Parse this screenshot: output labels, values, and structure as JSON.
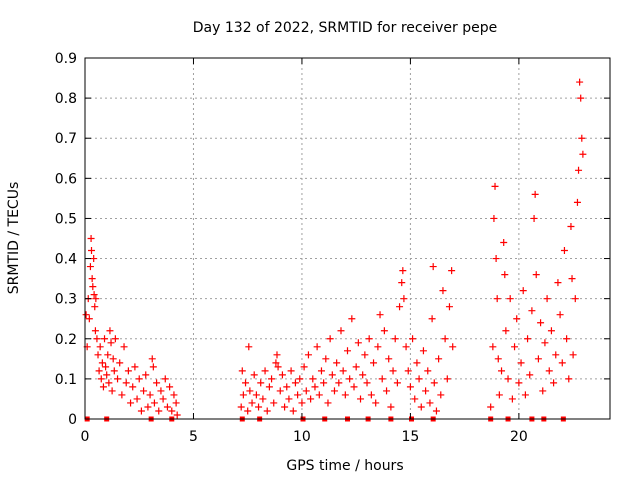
{
  "chart_data": {
    "type": "scatter",
    "title": "Day 132 of 2022, SRMTID for receiver pepe",
    "xlabel": "GPS time / hours",
    "ylabel": "SRMTID / TECUs",
    "xlim": [
      0,
      24.2
    ],
    "ylim": [
      0,
      0.9
    ],
    "xticks": [
      0,
      5,
      10,
      15,
      20
    ],
    "yticks": [
      0,
      0.1,
      0.2,
      0.3,
      0.4,
      0.5,
      0.6,
      0.7,
      0.8,
      0.9
    ],
    "grid": true,
    "marker": "plus",
    "color": "#ff0000",
    "series": [
      {
        "name": "SRMTID",
        "points": [
          [
            0.05,
            0.26
          ],
          [
            0.1,
            0.18
          ],
          [
            0.15,
            0.3
          ],
          [
            0.2,
            0.25
          ],
          [
            0.25,
            0.38
          ],
          [
            0.28,
            0.45
          ],
          [
            0.3,
            0.42
          ],
          [
            0.33,
            0.35
          ],
          [
            0.36,
            0.33
          ],
          [
            0.4,
            0.4
          ],
          [
            0.42,
            0.31
          ],
          [
            0.45,
            0.28
          ],
          [
            0.48,
            0.22
          ],
          [
            0.5,
            0.3
          ],
          [
            0.55,
            0.2
          ],
          [
            0.6,
            0.16
          ],
          [
            0.65,
            0.12
          ],
          [
            0.7,
            0.18
          ],
          [
            0.75,
            0.1
          ],
          [
            0.8,
            0.14
          ],
          [
            0.85,
            0.08
          ],
          [
            0.9,
            0.2
          ],
          [
            0.95,
            0.13
          ],
          [
            1.0,
            0.11
          ],
          [
            1.05,
            0.16
          ],
          [
            1.1,
            0.09
          ],
          [
            1.15,
            0.22
          ],
          [
            1.2,
            0.19
          ],
          [
            1.25,
            0.07
          ],
          [
            1.3,
            0.15
          ],
          [
            1.35,
            0.12
          ],
          [
            1.4,
            0.2
          ],
          [
            1.5,
            0.1
          ],
          [
            1.6,
            0.14
          ],
          [
            1.7,
            0.06
          ],
          [
            1.8,
            0.18
          ],
          [
            1.9,
            0.09
          ],
          [
            2.0,
            0.12
          ],
          [
            2.1,
            0.04
          ],
          [
            2.2,
            0.08
          ],
          [
            2.3,
            0.13
          ],
          [
            2.4,
            0.05
          ],
          [
            2.5,
            0.1
          ],
          [
            2.6,
            0.02
          ],
          [
            2.7,
            0.07
          ],
          [
            2.8,
            0.11
          ],
          [
            2.9,
            0.03
          ],
          [
            3.0,
            0.06
          ],
          [
            3.1,
            0.15
          ],
          [
            3.15,
            0.13
          ],
          [
            3.2,
            0.04
          ],
          [
            3.3,
            0.09
          ],
          [
            3.4,
            0.02
          ],
          [
            3.5,
            0.07
          ],
          [
            3.6,
            0.05
          ],
          [
            3.7,
            0.1
          ],
          [
            3.8,
            0.03
          ],
          [
            3.9,
            0.08
          ],
          [
            4.0,
            0.02
          ],
          [
            4.1,
            0.06
          ],
          [
            4.2,
            0.04
          ],
          [
            4.25,
            0.01
          ],
          [
            7.2,
            0.03
          ],
          [
            7.25,
            0.12
          ],
          [
            7.3,
            0.06
          ],
          [
            7.4,
            0.09
          ],
          [
            7.5,
            0.02
          ],
          [
            7.55,
            0.18
          ],
          [
            7.6,
            0.07
          ],
          [
            7.7,
            0.04
          ],
          [
            7.8,
            0.11
          ],
          [
            7.9,
            0.06
          ],
          [
            8.0,
            0.03
          ],
          [
            8.1,
            0.09
          ],
          [
            8.2,
            0.05
          ],
          [
            8.3,
            0.12
          ],
          [
            8.4,
            0.02
          ],
          [
            8.5,
            0.08
          ],
          [
            8.6,
            0.1
          ],
          [
            8.7,
            0.04
          ],
          [
            8.8,
            0.14
          ],
          [
            8.85,
            0.16
          ],
          [
            8.9,
            0.13
          ],
          [
            9.0,
            0.07
          ],
          [
            9.1,
            0.11
          ],
          [
            9.2,
            0.03
          ],
          [
            9.3,
            0.08
          ],
          [
            9.4,
            0.05
          ],
          [
            9.5,
            0.12
          ],
          [
            9.6,
            0.02
          ],
          [
            9.7,
            0.09
          ],
          [
            9.8,
            0.06
          ],
          [
            9.9,
            0.1
          ],
          [
            10.0,
            0.04
          ],
          [
            10.1,
            0.13
          ],
          [
            10.2,
            0.07
          ],
          [
            10.3,
            0.16
          ],
          [
            10.4,
            0.05
          ],
          [
            10.5,
            0.1
          ],
          [
            10.6,
            0.08
          ],
          [
            10.7,
            0.18
          ],
          [
            10.8,
            0.06
          ],
          [
            10.9,
            0.12
          ],
          [
            11.0,
            0.09
          ],
          [
            11.1,
            0.15
          ],
          [
            11.2,
            0.04
          ],
          [
            11.3,
            0.2
          ],
          [
            11.4,
            0.11
          ],
          [
            11.5,
            0.07
          ],
          [
            11.6,
            0.14
          ],
          [
            11.7,
            0.09
          ],
          [
            11.8,
            0.22
          ],
          [
            11.9,
            0.12
          ],
          [
            12.0,
            0.06
          ],
          [
            12.1,
            0.17
          ],
          [
            12.2,
            0.1
          ],
          [
            12.3,
            0.25
          ],
          [
            12.4,
            0.08
          ],
          [
            12.5,
            0.13
          ],
          [
            12.6,
            0.19
          ],
          [
            12.7,
            0.05
          ],
          [
            12.8,
            0.11
          ],
          [
            12.9,
            0.16
          ],
          [
            13.0,
            0.09
          ],
          [
            13.1,
            0.2
          ],
          [
            13.2,
            0.06
          ],
          [
            13.3,
            0.14
          ],
          [
            13.4,
            0.04
          ],
          [
            13.5,
            0.18
          ],
          [
            13.6,
            0.26
          ],
          [
            13.7,
            0.1
          ],
          [
            13.8,
            0.22
          ],
          [
            13.9,
            0.07
          ],
          [
            14.0,
            0.15
          ],
          [
            14.1,
            0.03
          ],
          [
            14.2,
            0.12
          ],
          [
            14.3,
            0.2
          ],
          [
            14.4,
            0.09
          ],
          [
            14.5,
            0.28
          ],
          [
            14.6,
            0.34
          ],
          [
            14.65,
            0.37
          ],
          [
            14.7,
            0.3
          ],
          [
            14.8,
            0.18
          ],
          [
            14.9,
            0.12
          ],
          [
            15.0,
            0.08
          ],
          [
            15.1,
            0.2
          ],
          [
            15.2,
            0.05
          ],
          [
            15.3,
            0.14
          ],
          [
            15.4,
            0.1
          ],
          [
            15.5,
            0.03
          ],
          [
            15.6,
            0.17
          ],
          [
            15.7,
            0.07
          ],
          [
            15.8,
            0.12
          ],
          [
            15.9,
            0.04
          ],
          [
            16.0,
            0.25
          ],
          [
            16.05,
            0.38
          ],
          [
            16.1,
            0.09
          ],
          [
            16.2,
            0.02
          ],
          [
            16.3,
            0.15
          ],
          [
            16.4,
            0.06
          ],
          [
            16.5,
            0.32
          ],
          [
            16.6,
            0.2
          ],
          [
            16.7,
            0.1
          ],
          [
            16.8,
            0.28
          ],
          [
            16.9,
            0.37
          ],
          [
            16.95,
            0.18
          ],
          [
            18.7,
            0.03
          ],
          [
            18.8,
            0.18
          ],
          [
            18.85,
            0.5
          ],
          [
            18.9,
            0.58
          ],
          [
            18.95,
            0.4
          ],
          [
            19.0,
            0.3
          ],
          [
            19.05,
            0.15
          ],
          [
            19.1,
            0.06
          ],
          [
            19.2,
            0.12
          ],
          [
            19.3,
            0.44
          ],
          [
            19.35,
            0.36
          ],
          [
            19.4,
            0.22
          ],
          [
            19.5,
            0.1
          ],
          [
            19.6,
            0.3
          ],
          [
            19.7,
            0.05
          ],
          [
            19.8,
            0.18
          ],
          [
            19.9,
            0.25
          ],
          [
            20.0,
            0.09
          ],
          [
            20.1,
            0.14
          ],
          [
            20.2,
            0.32
          ],
          [
            20.3,
            0.06
          ],
          [
            20.4,
            0.2
          ],
          [
            20.5,
            0.11
          ],
          [
            20.6,
            0.27
          ],
          [
            20.7,
            0.5
          ],
          [
            20.75,
            0.56
          ],
          [
            20.8,
            0.36
          ],
          [
            20.9,
            0.15
          ],
          [
            21.0,
            0.24
          ],
          [
            21.1,
            0.07
          ],
          [
            21.2,
            0.19
          ],
          [
            21.3,
            0.3
          ],
          [
            21.4,
            0.12
          ],
          [
            21.5,
            0.22
          ],
          [
            21.6,
            0.09
          ],
          [
            21.7,
            0.16
          ],
          [
            21.8,
            0.34
          ],
          [
            21.9,
            0.26
          ],
          [
            22.0,
            0.14
          ],
          [
            22.1,
            0.42
          ],
          [
            22.2,
            0.2
          ],
          [
            22.3,
            0.1
          ],
          [
            22.4,
            0.48
          ],
          [
            22.45,
            0.35
          ],
          [
            22.5,
            0.16
          ],
          [
            22.6,
            0.3
          ],
          [
            22.7,
            0.54
          ],
          [
            22.75,
            0.62
          ],
          [
            22.8,
            0.84
          ],
          [
            22.85,
            0.8
          ],
          [
            22.9,
            0.7
          ],
          [
            22.95,
            0.66
          ]
        ]
      }
    ],
    "baseline_markers": [
      0.1,
      1.0,
      3.05,
      4.0,
      7.25,
      8.05,
      10.05,
      11.05,
      12.1,
      13.05,
      14.1,
      15.05,
      16.05,
      18.7,
      19.5,
      20.6,
      21.15,
      22.05
    ]
  }
}
